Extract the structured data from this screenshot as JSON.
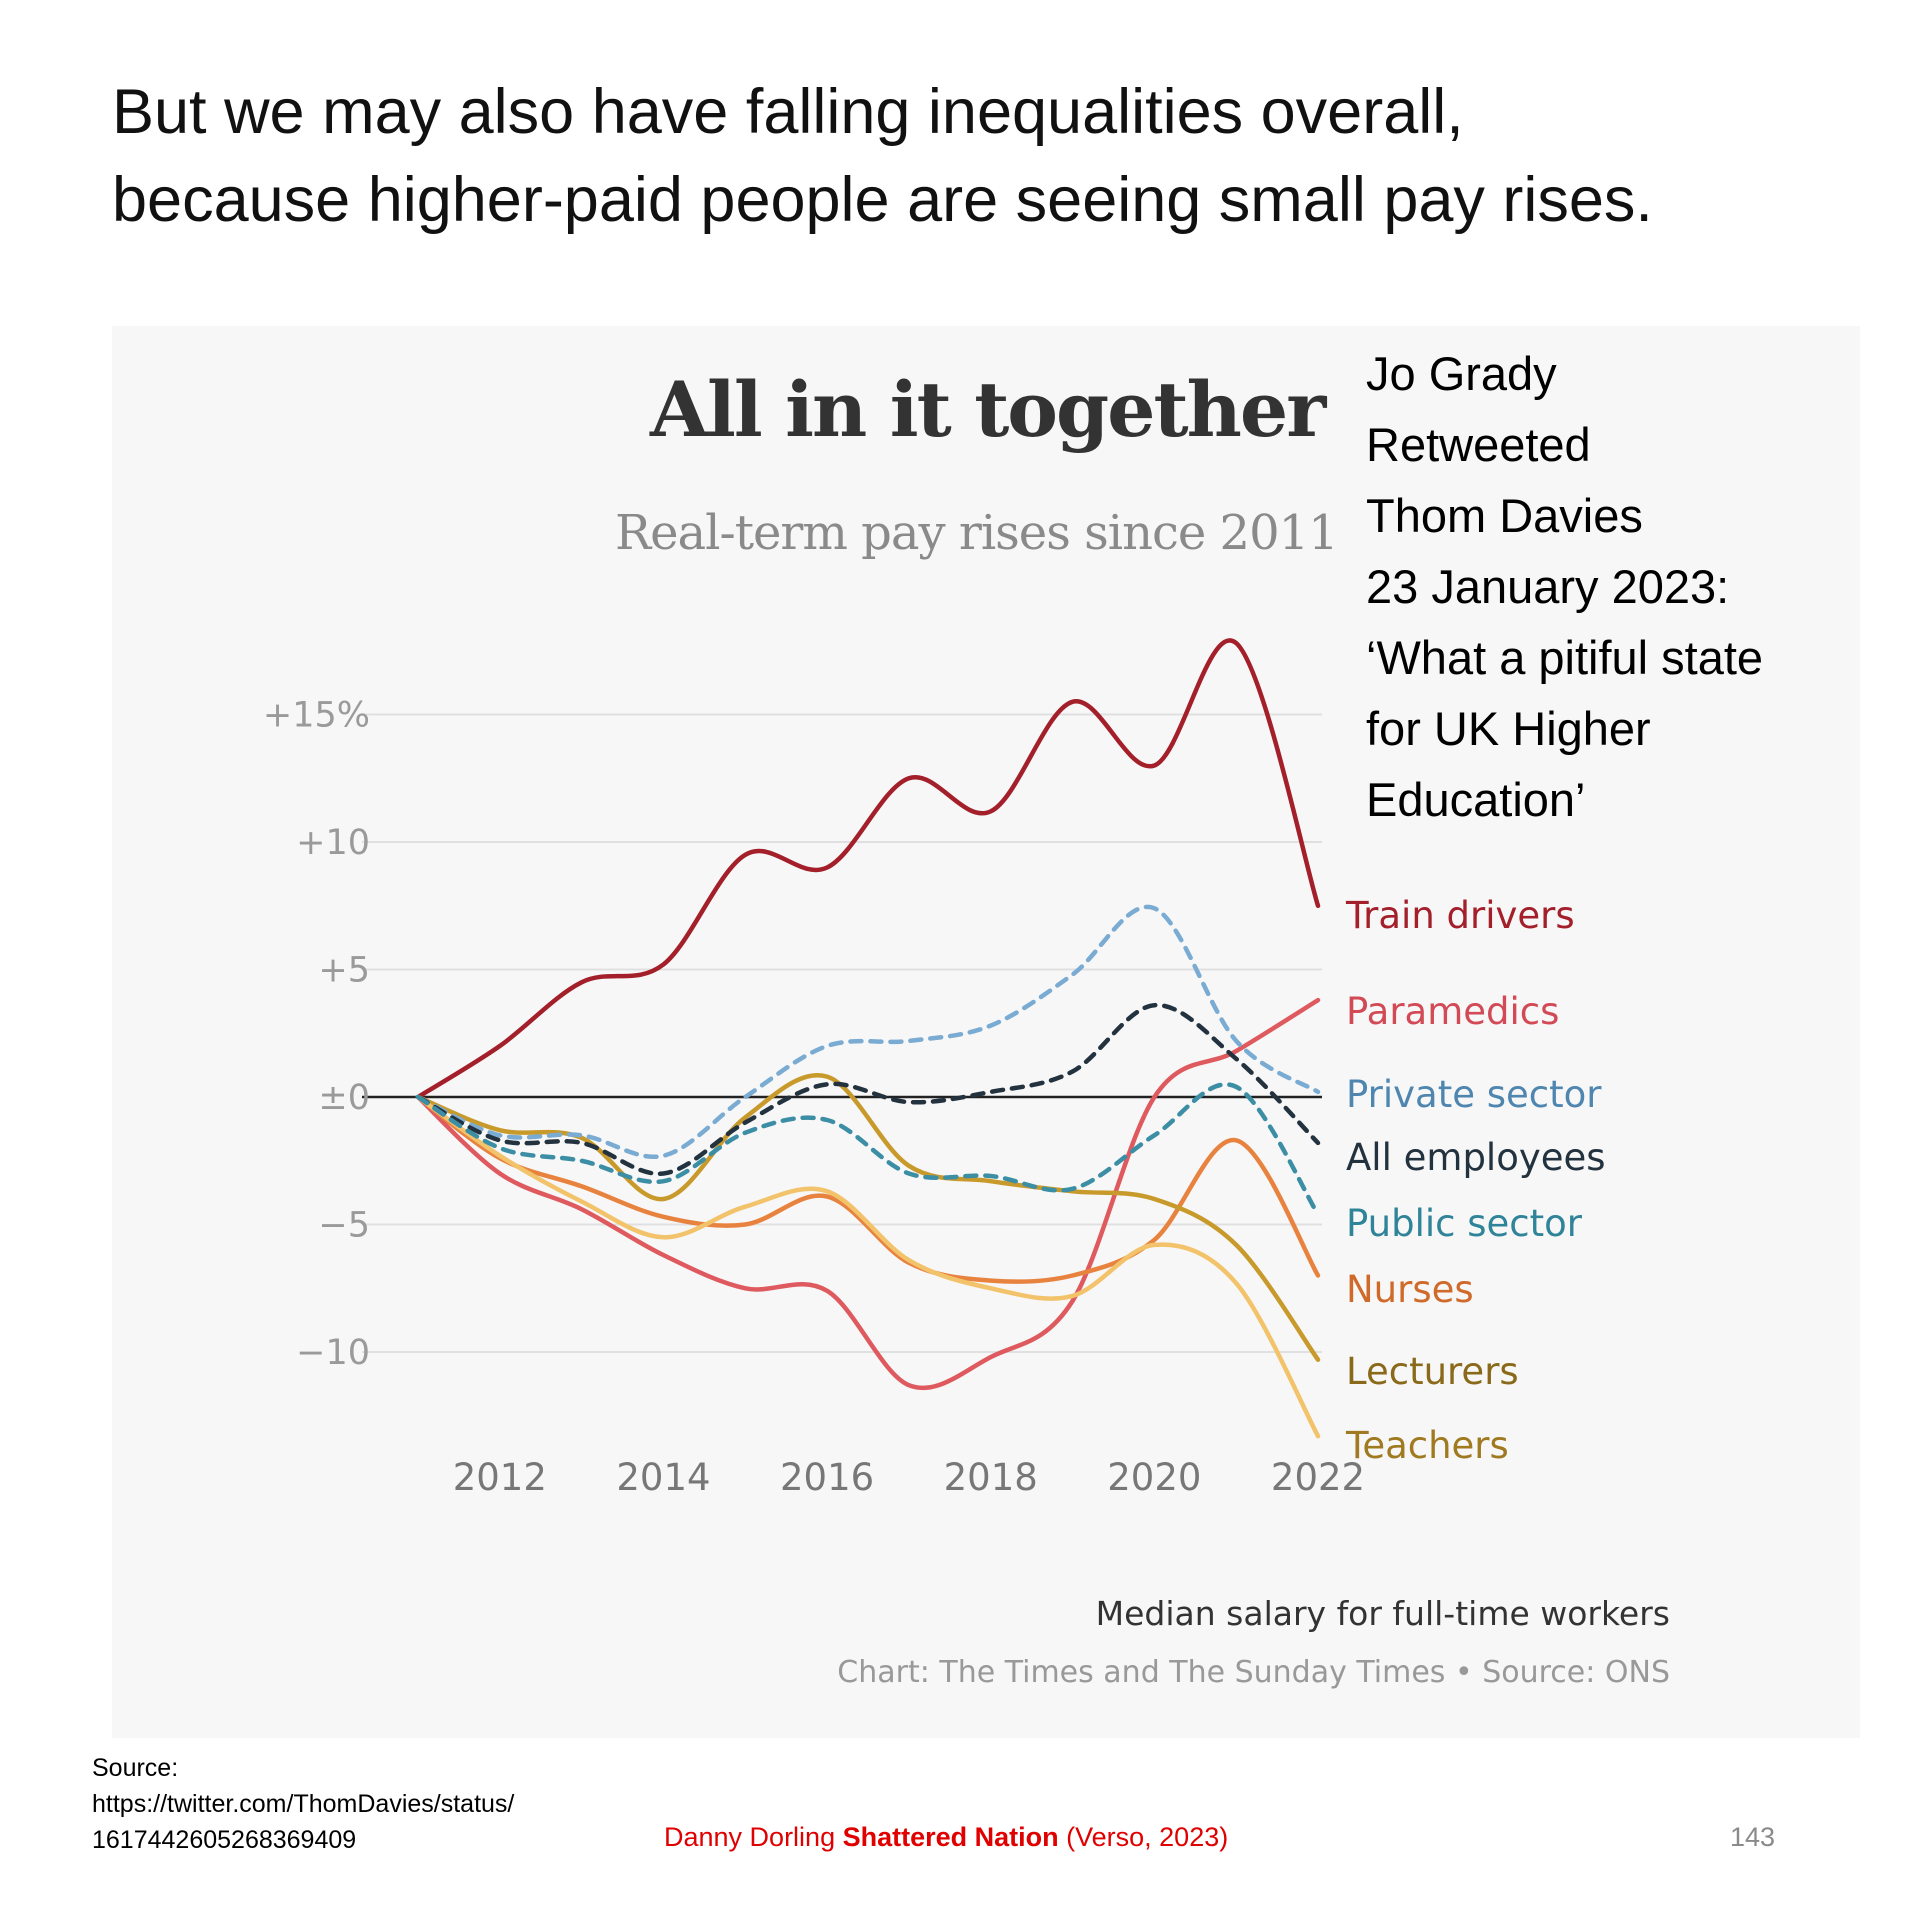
{
  "slide": {
    "headline_line1": "But we may also have falling inequalities overall,",
    "headline_line2": "because higher-paid people are seeing small pay rises.",
    "tweet_note": [
      "Jo Grady",
      "Retweeted",
      "Thom Davies",
      "23 January 2023:",
      "‘What a pitiful state",
      "for UK Higher",
      "Education’"
    ],
    "source_label": "Source:",
    "source_url_line1": "https://twitter.com/ThomDavies/status/",
    "source_url_line2": "1617442605268369409",
    "book_author": "Danny Dorling ",
    "book_title": "Shattered Nation",
    "book_publisher": " (Verso, 2023)",
    "page_number": "143"
  },
  "chart_data": {
    "type": "line",
    "title": "All in it together",
    "subtitle": "Real-term pay rises since 2011",
    "footer_note": "Median salary for full-time workers",
    "credit": "Chart: The Times and The Sunday Times • Source: ONS",
    "xlabel": "",
    "ylabel": "",
    "xlim": [
      2011,
      2022
    ],
    "ylim": [
      -14,
      19
    ],
    "x_ticks": [
      2012,
      2014,
      2016,
      2018,
      2020,
      2022
    ],
    "y_ticks": [
      {
        "value": 15,
        "label": "+15%"
      },
      {
        "value": 10,
        "label": "+10"
      },
      {
        "value": 5,
        "label": "+5"
      },
      {
        "value": 0,
        "label": "±0"
      },
      {
        "value": -5,
        "label": "−5"
      },
      {
        "value": -10,
        "label": "−10"
      }
    ],
    "x": [
      2011,
      2012,
      2013,
      2014,
      2015,
      2016,
      2017,
      2018,
      2019,
      2020,
      2021,
      2022
    ],
    "series": [
      {
        "name": "Train drivers",
        "color": "#a3202b",
        "dashed": false,
        "values": [
          0,
          2.0,
          4.5,
          5.2,
          9.5,
          9.0,
          12.5,
          11.2,
          15.5,
          13.0,
          17.8,
          7.5
        ]
      },
      {
        "name": "Paramedics",
        "color": "#de5a5f",
        "dashed": false,
        "values": [
          0,
          -3.0,
          -4.4,
          -6.2,
          -7.5,
          -7.6,
          -11.3,
          -10.2,
          -8.0,
          0.0,
          1.8,
          3.8
        ]
      },
      {
        "name": "Private sector",
        "color": "#7aabd3",
        "dashed": true,
        "values": [
          0,
          -1.5,
          -1.5,
          -2.3,
          0.0,
          2.0,
          2.2,
          2.8,
          4.8,
          7.4,
          2.2,
          0.2
        ]
      },
      {
        "name": "All employees",
        "color": "#23323f",
        "dashed": true,
        "values": [
          0,
          -1.7,
          -1.8,
          -3.0,
          -1.0,
          0.5,
          -0.2,
          0.2,
          1.0,
          3.6,
          1.5,
          -1.8
        ]
      },
      {
        "name": "Public sector",
        "color": "#3c8ea5",
        "dashed": true,
        "values": [
          0,
          -2.0,
          -2.5,
          -3.3,
          -1.4,
          -0.9,
          -3.0,
          -3.1,
          -3.6,
          -1.5,
          0.4,
          -4.6
        ]
      },
      {
        "name": "Nurses",
        "color": "#e8833f",
        "dashed": false,
        "values": [
          0,
          -2.4,
          -3.5,
          -4.7,
          -5.0,
          -3.9,
          -6.5,
          -7.2,
          -7.0,
          -5.6,
          -1.7,
          -7.0
        ]
      },
      {
        "name": "Lecturers",
        "color": "#c89a2c",
        "dashed": false,
        "values": [
          0,
          -1.3,
          -1.6,
          -4.0,
          -0.8,
          0.8,
          -2.7,
          -3.3,
          -3.7,
          -4.0,
          -5.8,
          -10.3
        ]
      },
      {
        "name": "Teachers",
        "color": "#f2c36a",
        "dashed": false,
        "values": [
          0,
          -2.3,
          -4.1,
          -5.5,
          -4.3,
          -3.7,
          -6.4,
          -7.5,
          -7.8,
          -5.8,
          -7.3,
          -13.3
        ]
      }
    ],
    "label_colors": {
      "Train drivers": "#a3202b",
      "Paramedics": "#d24a55",
      "Private sector": "#4f86b0",
      "All employees": "#23323f",
      "Public sector": "#2f8499",
      "Nurses": "#cf6a2a",
      "Lecturers": "#8a6a1a",
      "Teachers": "#a07a20"
    },
    "grid": true,
    "legend": "direct-labels-right"
  }
}
